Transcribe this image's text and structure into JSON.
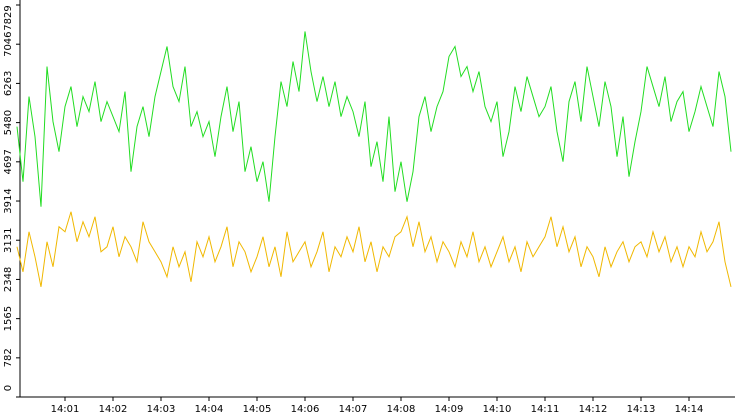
{
  "chart_data": {
    "type": "line",
    "categories": [
      null,
      null,
      null,
      null,
      null,
      null,
      null,
      null,
      "14:01",
      null,
      null,
      null,
      null,
      null,
      null,
      null,
      "14:02",
      null,
      null,
      null,
      null,
      null,
      null,
      null,
      "14:03",
      null,
      null,
      null,
      null,
      null,
      null,
      null,
      "14:04",
      null,
      null,
      null,
      null,
      null,
      null,
      null,
      "14:05",
      null,
      null,
      null,
      null,
      null,
      null,
      null,
      "14:06",
      null,
      null,
      null,
      null,
      null,
      null,
      null,
      "14:07",
      null,
      null,
      null,
      null,
      null,
      null,
      null,
      "14:08",
      null,
      null,
      null,
      null,
      null,
      null,
      null,
      "14:09",
      null,
      null,
      null,
      null,
      null,
      null,
      null,
      "14:10",
      null,
      null,
      null,
      null,
      null,
      null,
      null,
      "14:11",
      null,
      null,
      null,
      null,
      null,
      null,
      null,
      "14:12",
      null,
      null,
      null,
      null,
      null,
      null,
      null,
      "14:13",
      null,
      null,
      null,
      null,
      null,
      null,
      null,
      "14:14",
      null,
      null,
      null,
      null,
      null,
      null,
      null
    ],
    "series": [
      {
        "color": "#22dd22",
        "values": [
          5400,
          4300,
          6000,
          5200,
          3800,
          6600,
          5500,
          4900,
          5800,
          6200,
          5400,
          6000,
          5700,
          6300,
          5500,
          5900,
          5600,
          5300,
          6100,
          4500,
          5400,
          5800,
          5200,
          6000,
          6500,
          7000,
          6200,
          5900,
          6600,
          5400,
          5700,
          5200,
          5500,
          4800,
          5600,
          6200,
          5300,
          5900,
          4500,
          5000,
          4300,
          4700,
          3900,
          5200,
          6300,
          5800,
          6700,
          6100,
          7300,
          6500,
          5900,
          6400,
          5800,
          6300,
          5600,
          6000,
          5700,
          5200,
          5900,
          4600,
          5100,
          4300,
          5600,
          4100,
          4700,
          3900,
          4500,
          5600,
          6000,
          5300,
          5800,
          6100,
          6800,
          7000,
          6400,
          6600,
          6100,
          6500,
          5800,
          5500,
          5900,
          4800,
          5300,
          6200,
          5700,
          6400,
          6000,
          5600,
          5800,
          6200,
          5300,
          4700,
          5900,
          6300,
          5500,
          6600,
          6000,
          5400,
          6300,
          5800,
          4800,
          5600,
          4400,
          5100,
          5700,
          6600,
          6200,
          5800,
          6400,
          5500,
          5900,
          6100,
          5300,
          5700,
          6200,
          5800,
          5400,
          6500,
          6000,
          4900
        ]
      },
      {
        "color": "#f0b800",
        "values": [
          3000,
          2500,
          3300,
          2800,
          2200,
          3100,
          2600,
          3400,
          3300,
          3700,
          3100,
          3500,
          3200,
          3600,
          2900,
          3000,
          3400,
          2800,
          3200,
          3000,
          2700,
          3500,
          3100,
          2900,
          2700,
          2400,
          3000,
          2600,
          2900,
          2300,
          3100,
          2800,
          3200,
          2700,
          3000,
          3400,
          2600,
          3100,
          2900,
          2500,
          2800,
          3200,
          2600,
          3000,
          2400,
          3300,
          2700,
          2900,
          3100,
          2600,
          2900,
          3300,
          2500,
          3000,
          2800,
          3200,
          2900,
          3400,
          2700,
          3100,
          2500,
          3000,
          2800,
          3200,
          3300,
          3600,
          3000,
          3500,
          2900,
          3200,
          2700,
          3100,
          2900,
          2600,
          3100,
          2800,
          3300,
          2700,
          3000,
          2600,
          2900,
          3200,
          2700,
          3000,
          2500,
          3100,
          2800,
          3000,
          3200,
          3600,
          3000,
          3400,
          2900,
          3200,
          2600,
          3000,
          2800,
          2400,
          3000,
          2600,
          2900,
          3100,
          2700,
          3000,
          3100,
          2800,
          3300,
          2900,
          3200,
          2700,
          3000,
          2600,
          3000,
          2800,
          3300,
          2900,
          3100,
          3500,
          2700,
          2200
        ]
      }
    ],
    "ylim": [
      0,
      7829
    ],
    "yticks": [
      0,
      782,
      1565,
      2348,
      3131,
      3914,
      4697,
      5480,
      6263,
      7046,
      7829
    ]
  }
}
